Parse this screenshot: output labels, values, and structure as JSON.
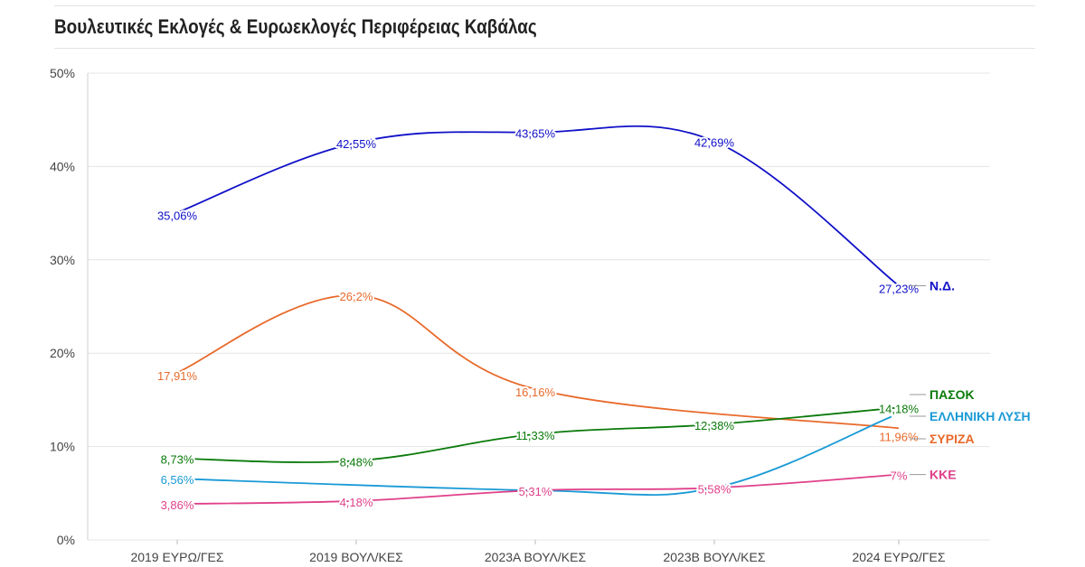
{
  "title": "Βουλευτικές Εκλογές & Ευρωεκλογές Περιφέρειας Καβάλας",
  "chart_data": {
    "type": "line",
    "title": "Βουλευτικές Εκλογές & Ευρωεκλογές Περιφέρειας Καβάλας",
    "xlabel": "",
    "ylabel": "",
    "categories": [
      "2019 ΕΥΡΩ/ΓΕΣ",
      "2019 ΒΟΥΛ/ΚΕΣ",
      "2023Α ΒΟΥΛ/ΚΕΣ",
      "2023Β ΒΟΥΛ/ΚΕΣ",
      "2024 ΕΥΡΩ/ΓΕΣ"
    ],
    "ylim": [
      0,
      50
    ],
    "yticks": [
      0,
      10,
      20,
      30,
      40,
      50
    ],
    "ytick_labels": [
      "0%",
      "10%",
      "20%",
      "30%",
      "40%",
      "50%"
    ],
    "grid": true,
    "legend": "labels at end of lines (right)",
    "series": [
      {
        "name": "Ν.Δ.",
        "color": "#1010c8",
        "values": [
          35.06,
          42.55,
          43.65,
          42.69,
          27.23
        ],
        "labels": [
          "35,06%",
          "42,55%",
          "43,65%",
          "42,69%",
          "27,23%"
        ]
      },
      {
        "name": "ΣΥΡΙΖΑ",
        "color": "#e8692a",
        "values": [
          17.91,
          26.2,
          16.16,
          null,
          11.96
        ],
        "labels": [
          "17,91%",
          "26,2%",
          "16,16%",
          "",
          "11,96%"
        ]
      },
      {
        "name": "ΠΑΣΟΚ",
        "color": "#0a7a0a",
        "values": [
          8.73,
          8.48,
          11.33,
          12.38,
          14.18
        ],
        "labels": [
          "8,73%",
          "8,48%",
          "11,33%",
          "12,38%",
          "14,18%"
        ]
      },
      {
        "name": "ΕΛΛΗΝΙΚΗ ΛΥΣΗ",
        "color": "#1a9ad6",
        "values": [
          6.56,
          null,
          5.31,
          5.58,
          null
        ],
        "labels": [
          "6,56%",
          "",
          "",
          "",
          ""
        ]
      },
      {
        "name": "ΚΚΕ",
        "color": "#e0408a",
        "values": [
          3.86,
          4.18,
          5.31,
          5.58,
          7
        ],
        "labels": [
          "3,86%",
          "4,18%",
          "5,31%",
          "5,58%",
          "7%"
        ]
      }
    ]
  }
}
